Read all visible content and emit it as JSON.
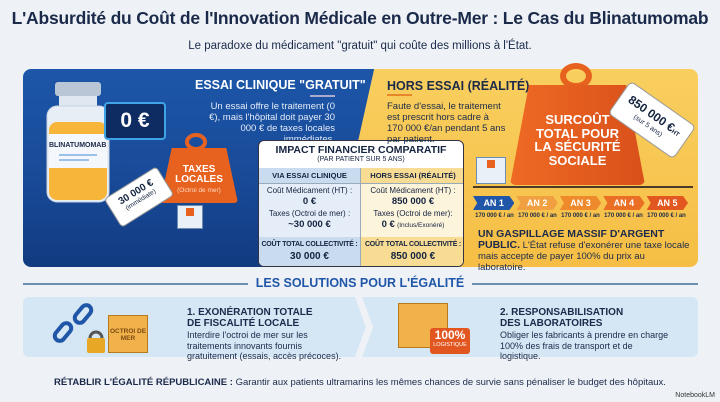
{
  "title": "L'Absurdité du Coût de l'Innovation Médicale en Outre-Mer : Le Cas du Blinatumomab",
  "subtitle": "Le paradoxe du médicament \"gratuit\" qui coûte des millions à l'État.",
  "left": {
    "heading": "ESSAI CLINIQUE \"GRATUIT\"",
    "description": "Un essai offre le traitement (0 €), mais l'hôpital doit payer 30 000 € de taxes locales immédiates.",
    "vial_label": "BLINATUMOMAB",
    "price_box": "0 €",
    "weight_label": "TAXES LOCALES",
    "weight_sub": "(Octroi de mer)",
    "tag_value": "30 000 €",
    "tag_sub": "(immédiate)"
  },
  "right": {
    "heading": "HORS ESSAI (RÉALITÉ)",
    "description": "Faute d'essai, le traitement est prescrit hors cadre à 170 000 €/an pendant 5 ans par patient.",
    "weight_label": "SURCOÛT TOTAL POUR LA SÉCURITÉ SOCIALE",
    "tag_value": "850 000 €",
    "tag_unit": "HT",
    "tag_sub": "(sur 5 ans)",
    "years": [
      {
        "label": "AN 1",
        "amount": "170 000 € / an",
        "color": "#1f56a8"
      },
      {
        "label": "AN 2",
        "amount": "170 000 € / an",
        "color": "#f0a040"
      },
      {
        "label": "AN 3",
        "amount": "170 000 € / an",
        "color": "#ef8a2c"
      },
      {
        "label": "AN 4",
        "amount": "170 000 € / an",
        "color": "#ea6f24"
      },
      {
        "label": "AN 5",
        "amount": "170 000 € / an",
        "color": "#e2561f"
      }
    ],
    "waste_heading": "UN GASPILLAGE MASSIF D'ARGENT PUBLIC.",
    "waste_text": "L'État refuse d'exonérer une taxe locale mais accepte de payer 100% du prix au laboratoire."
  },
  "table": {
    "title": "IMPACT FINANCIER COMPARATIF",
    "subtitle": "(PAR PATIENT SUR 5 ANS)",
    "col1": {
      "header": "VIA ESSAI CLINIQUE",
      "r1_label": "Coût Médicament (HT) :",
      "r1_value": "0 €",
      "r2_label": "Taxes (Octroi de mer) :",
      "r2_value": "~30 000 €",
      "total_label": "COÛT TOTAL COLLECTIVITÉ :",
      "total_value": "30 000 €"
    },
    "col2": {
      "header": "HORS ESSAI (RÉALITÉ)",
      "r1_label": "Coût Médicament (HT) :",
      "r1_value": "850 000 €",
      "r2_label": "Taxes (Octroi de mer):",
      "r2_value": "0 €",
      "r2_note": "(Inclus/Exonéré)",
      "total_label": "COÛT TOTAL COLLECTIVITÉ :",
      "total_value": "850 000 €"
    }
  },
  "solutions": {
    "heading": "LES SOLUTIONS POUR L'ÉGALITÉ",
    "s1": {
      "title": "1. EXONÉRATION TOTALE DE FISCALITÉ LOCALE",
      "text": "Interdire l'octroi de mer sur les traitements innovants fournis gratuitement (essais, accès précoces).",
      "box_label": "OCTROI DE MER"
    },
    "s2": {
      "title": "2. RESPONSABILISATION DES LABORATOIRES",
      "text": "Obliger les fabricants à prendre en charge 100% des frais de transport et de logistique.",
      "badge": "100%",
      "badge_sub": "LOGISTIQUE"
    }
  },
  "footer": {
    "bold": "RÉTABLIR L'ÉGALITÉ RÉPUBLICAINE :",
    "text": " Garantir aux patients ultramarins les mêmes chances de survie sans pénaliser le budget des hôpitaux."
  },
  "watermark": "NotebookLM"
}
